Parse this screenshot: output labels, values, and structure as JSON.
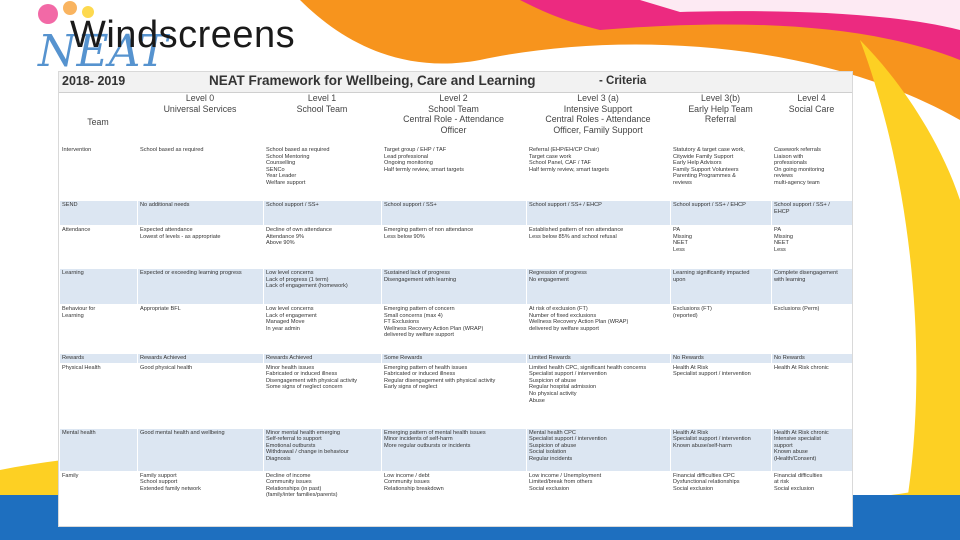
{
  "slide": {
    "title": "Windscreens"
  },
  "doc": {
    "year": "2018- 2019",
    "title": "NEAT  Framework for Wellbeing, Care and Learning",
    "criteria": "- Criteria",
    "row_header": "Team",
    "levels": [
      {
        "level": "Level 0",
        "team": "Universal Services"
      },
      {
        "level": "Level 1",
        "team": "School Team"
      },
      {
        "level": "Level 2",
        "team": "School Team\nCentral Role - Attendance\nOfficer"
      },
      {
        "level": "Level 3 (a)",
        "team": "Intensive Support\nCentral Roles - Attendance\nOfficer, Family Support"
      },
      {
        "level": "Level 3(b)",
        "team": "Early Help Team\nReferral"
      },
      {
        "level": "Level 4",
        "team": "Social Care"
      }
    ],
    "rows": [
      {
        "label": "Intervention",
        "cells": [
          "School based as required",
          "School based as required\nSchool Mentoring\nCounselling\nSENCo\nYear Leader\nWelfare support",
          "Target group / EHP / TAF\nLead professional\nOngoing monitoring\nHalf termly review, smart targets",
          "Referral (EHP/EH/CP Chair)\nTarget case work\nSchool Panel, CAF / TAF\nHalf termly review, smart targets",
          "Statutory & target case work,\nCitywide Family Support\nEarly Help Advisors\nFamily Support Volunteers\nParenting Programmes &\nreviews",
          "Casework referrals\nLiaison with\nprofessionals\nOn going monitoring\nreviews\nmulti-agency team"
        ]
      },
      {
        "label": "SEND",
        "cells": [
          "No additional needs",
          "School support / SS+",
          "School support / SS+",
          "School support / SS+ / EHCP",
          "School support / SS+ / EHCP",
          "School support / SS+ /\nEHCP"
        ]
      },
      {
        "label": "Attendance",
        "cells": [
          "Expected attendance\nLowest of levels - as appropriate",
          "Decline of own attendance\nAttendance 9%\nAbove 90%",
          "Emerging pattern of non attendance\nLess below 90%",
          "Established pattern of non attendance\nLess below 85% and school refusal",
          "PA\nMissing\nNEET\nLess",
          "PA\nMissing\nNEET\nLess"
        ]
      },
      {
        "label": "Learning",
        "cells": [
          "Expected or exceeding learning progress",
          "Low level concerns\nLack of progress (1 term)\nLack of engagement (homework)",
          "Sustained lack of progress\nDisengagement with learning",
          "Regression of progress\nNo engagement",
          "Learning significantly impacted\nupon",
          "Complete disengagement\nwith learning"
        ]
      },
      {
        "label": "Behaviour for\nLearning",
        "cells": [
          "Appropriate BFL",
          "Low level concerns\nLack of engagement\nManaged Move\nIn year admin",
          "Emerging pattern of concern\nSmall concerns (max 4)\nFT Exclusions\nWellness Recovery Action Plan (WRAP)\ndelivered by welfare support",
          "At risk of exclusion (FT)\nNumber of fixed exclusions\nWellness Recovery Action Plan (WRAP)\ndelivered by welfare support",
          "Exclusions (FT)\n(reported)",
          "Exclusions (Perm)"
        ]
      },
      {
        "label": "Rewards",
        "cells": [
          "Rewards Achieved",
          "Rewards Achieved",
          "Some Rewards",
          "Limited Rewards",
          "No Rewards",
          "No Rewards"
        ]
      },
      {
        "label": "Physical Health",
        "cells": [
          "Good physical health",
          "Minor health issues\nFabricated or induced illness\nDisengagement with physical activity\nSome signs of neglect concern",
          "Emerging pattern of health issues\nFabricated or induced illness\nRegular disengagement with physical activity\nEarly signs of neglect",
          "Limited health CPC, significant health concerns\nSpecialist support / intervention\nSuspicion of abuse\nRegular hospital admission\nNo physical activity\nAbuse",
          "Health At Risk\nSpecialist support / intervention",
          "Health At Risk chronic"
        ]
      },
      {
        "label": "Mental health",
        "cells": [
          "Good mental health and wellbeing",
          "Minor mental health emerging\nSelf-referral to support\nEmotional outbursts\nWithdrawal / change in behaviour\nDiagnosis",
          "Emerging pattern of mental health issues\nMinor incidents of self-harm\nMore regular outbursts or incidents",
          "Mental health CPC\nSpecialist support / intervention\nSuspicion of abuse\nSocial isolation\nRegular incidents",
          "Health At Risk\nSpecialist support / intervention\nKnown abuse/self-harm",
          "Health At Risk chronic\nIntensive specialist\nsupport\nKnown abuse\n(Health/Consent)"
        ]
      },
      {
        "label": "Family",
        "cells": [
          "Family support\nSchool support\nExtended family network",
          "Decline of income\nCommunity issues\nRelationships (in past)\n(family/inter families/parents)",
          "Low income / debt\nCommunity issues\nRelationship breakdown",
          "Low income / Unemployment\nLimited/break from others\nSocial exclusion",
          "Financial difficulties CPC\nDysfunctional relationships\nSocial exclusion",
          "Financial difficulties\nat risk\nSocial exclusion"
        ]
      }
    ]
  },
  "colors": {
    "accent_blue": "#1e6fbf",
    "swoosh_orange": "#f7941d",
    "swoosh_yellow": "#fdd023",
    "swoosh_pink": "#ec2a80",
    "row_band": "#dce6f2"
  }
}
